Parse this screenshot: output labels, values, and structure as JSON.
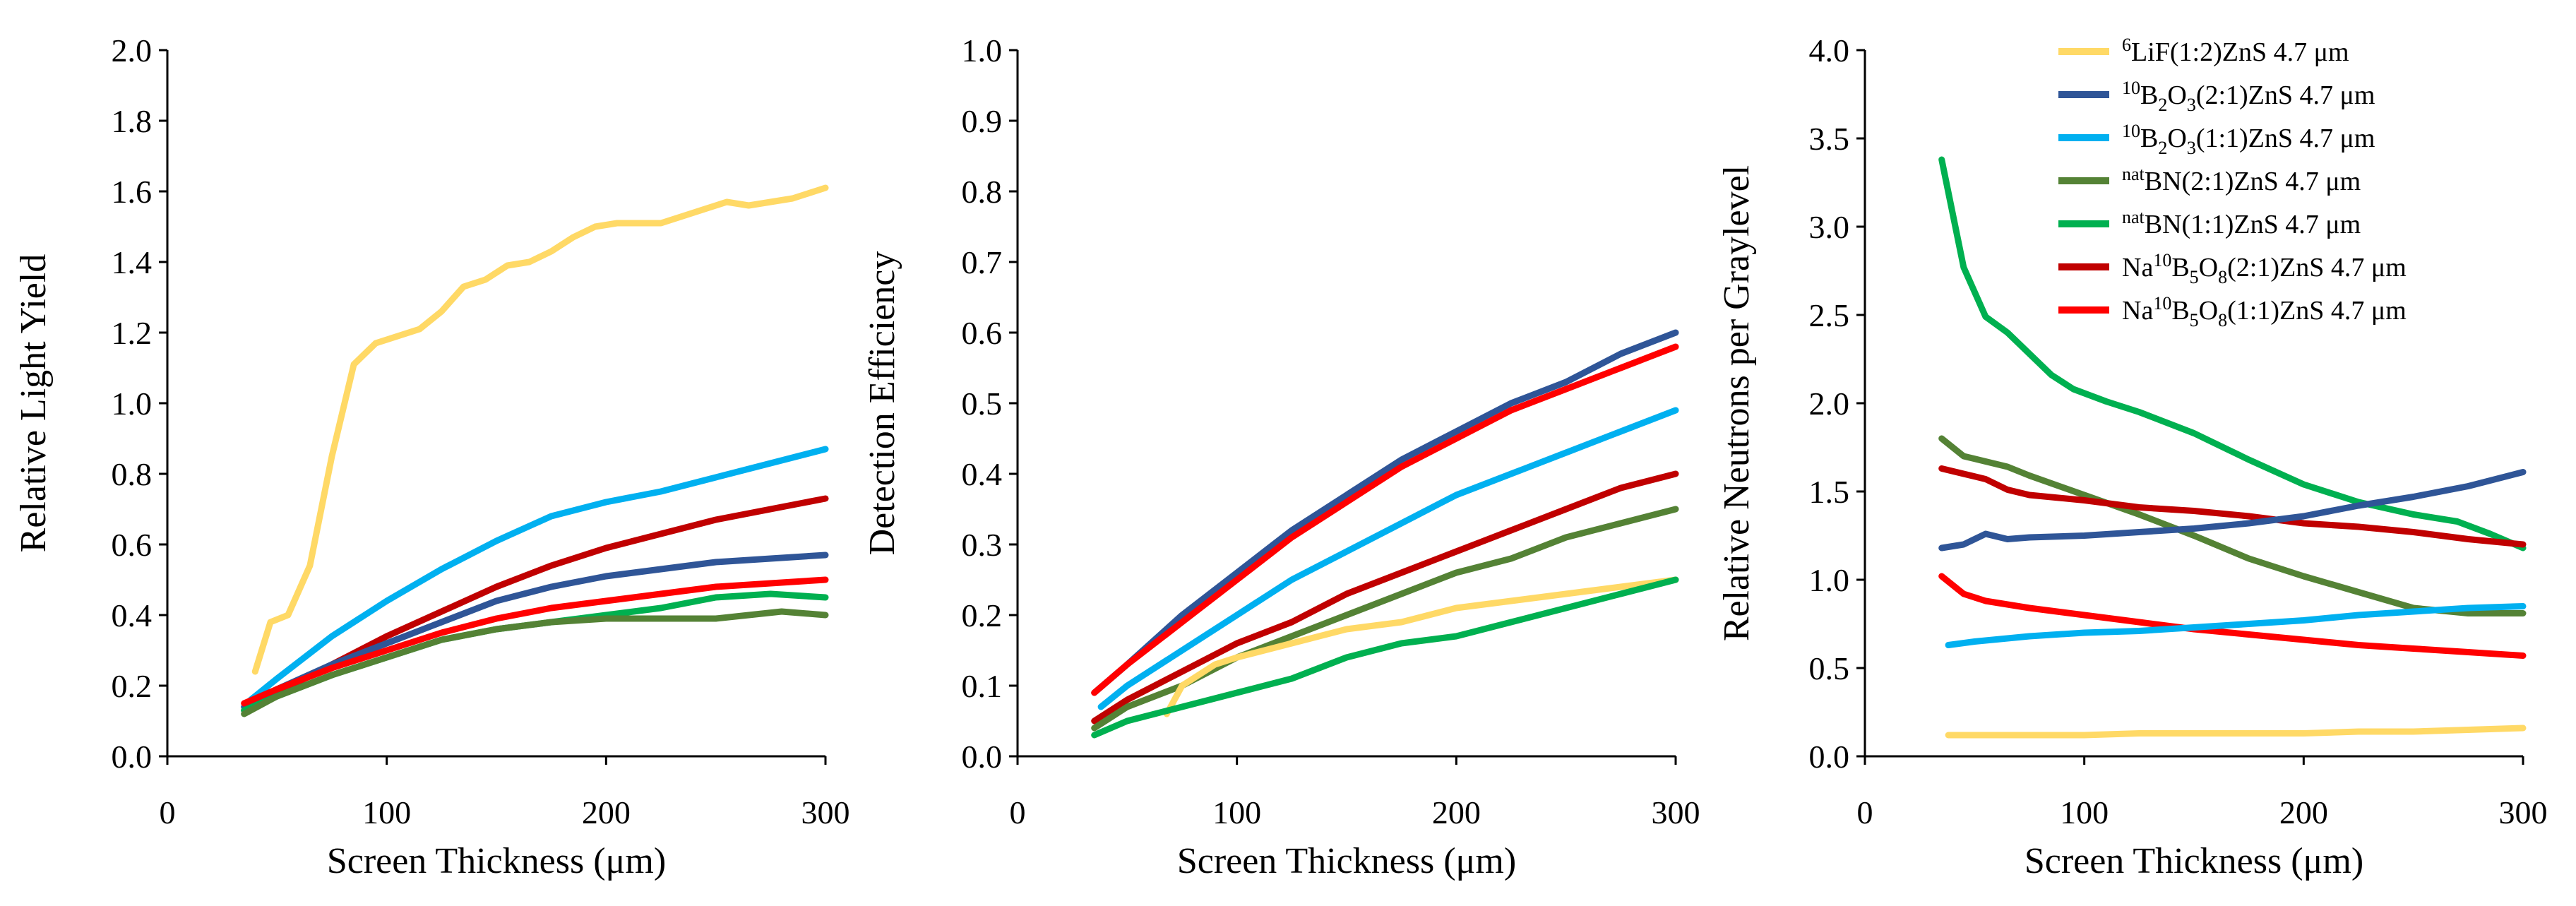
{
  "colors": {
    "LiF_1_2": "#FFD966",
    "B2O3_2_1": "#2F5597",
    "B2O3_1_1": "#00B0F0",
    "BN_2_1": "#548235",
    "BN_1_1": "#00B050",
    "Na_2_1": "#C00000",
    "Na_1_1": "#FF0000"
  },
  "legend": [
    {
      "key": "LiF_1_2",
      "sup": "6",
      "parts": [
        [
          "LiF(1:2)ZnS 4.7 μm",
          "n"
        ]
      ]
    },
    {
      "key": "B2O3_2_1",
      "sup": "10",
      "parts": [
        [
          "B",
          "n"
        ],
        [
          "2",
          "sub"
        ],
        [
          "O",
          "n"
        ],
        [
          "3",
          "sub"
        ],
        [
          "(2:1)ZnS 4.7 μm",
          "n"
        ]
      ]
    },
    {
      "key": "B2O3_1_1",
      "sup": "10",
      "parts": [
        [
          "B",
          "n"
        ],
        [
          "2",
          "sub"
        ],
        [
          "O",
          "n"
        ],
        [
          "3",
          "sub"
        ],
        [
          "(1:1)ZnS 4.7 μm",
          "n"
        ]
      ]
    },
    {
      "key": "BN_2_1",
      "sup": "nat",
      "parts": [
        [
          "BN(2:1)ZnS 4.7 μm",
          "n"
        ]
      ]
    },
    {
      "key": "BN_1_1",
      "sup": "nat",
      "parts": [
        [
          "BN(1:1)ZnS 4.7 μm",
          "n"
        ]
      ]
    },
    {
      "key": "Na_2_1",
      "sup": "",
      "parts": [
        [
          "Na",
          "n"
        ],
        [
          "10",
          "sup"
        ],
        [
          "B",
          "n"
        ],
        [
          "5",
          "sub"
        ],
        [
          "O",
          "n"
        ],
        [
          "8",
          "sub"
        ],
        [
          "(2:1)ZnS 4.7 μm",
          "n"
        ]
      ]
    },
    {
      "key": "Na_1_1",
      "sup": "",
      "parts": [
        [
          "Na",
          "n"
        ],
        [
          "10",
          "sup"
        ],
        [
          "B",
          "n"
        ],
        [
          "5",
          "sub"
        ],
        [
          "O",
          "n"
        ],
        [
          "8",
          "sub"
        ],
        [
          "(1:1)ZnS 4.7 μm",
          "n"
        ]
      ]
    }
  ],
  "chart_data": [
    {
      "type": "line",
      "xlabel": "Screen Thickness (μm)",
      "ylabel": "Relative Light Yield",
      "xlim": [
        0,
        300
      ],
      "ylim": [
        0,
        2.0
      ],
      "xticks": [
        0,
        100,
        200,
        300
      ],
      "yticks": [
        0.0,
        0.2,
        0.4,
        0.6,
        0.8,
        1.0,
        1.2,
        1.4,
        1.6,
        1.8,
        2.0
      ],
      "tick_decimals": 1,
      "series": [
        {
          "key": "LiF_1_2",
          "x": [
            40,
            47,
            55,
            65,
            75,
            85,
            95,
            105,
            115,
            125,
            135,
            145,
            155,
            165,
            175,
            185,
            195,
            205,
            215,
            225,
            235,
            245,
            255,
            265,
            275,
            285,
            295,
            300
          ],
          "y": [
            0.24,
            0.38,
            0.4,
            0.54,
            0.85,
            1.11,
            1.17,
            1.19,
            1.21,
            1.26,
            1.33,
            1.35,
            1.39,
            1.4,
            1.43,
            1.47,
            1.5,
            1.51,
            1.51,
            1.51,
            1.53,
            1.55,
            1.57,
            1.56,
            1.57,
            1.58,
            1.6,
            1.61
          ]
        },
        {
          "key": "B2O3_1_1",
          "x": [
            38,
            50,
            75,
            100,
            125,
            150,
            175,
            200,
            225,
            250,
            275,
            300
          ],
          "y": [
            0.16,
            0.22,
            0.34,
            0.44,
            0.53,
            0.61,
            0.68,
            0.72,
            0.75,
            0.79,
            0.83,
            0.87
          ]
        },
        {
          "key": "Na_2_1",
          "x": [
            35,
            50,
            75,
            100,
            125,
            150,
            175,
            200,
            225,
            250,
            275,
            300
          ],
          "y": [
            0.13,
            0.18,
            0.26,
            0.34,
            0.41,
            0.48,
            0.54,
            0.59,
            0.63,
            0.67,
            0.7,
            0.73
          ]
        },
        {
          "key": "B2O3_2_1",
          "x": [
            35,
            50,
            75,
            100,
            125,
            150,
            175,
            200,
            225,
            250,
            275,
            300
          ],
          "y": [
            0.14,
            0.19,
            0.26,
            0.32,
            0.38,
            0.44,
            0.48,
            0.51,
            0.53,
            0.55,
            0.56,
            0.57
          ]
        },
        {
          "key": "Na_1_1",
          "x": [
            35,
            50,
            75,
            100,
            125,
            150,
            175,
            200,
            225,
            250,
            275,
            300
          ],
          "y": [
            0.15,
            0.19,
            0.25,
            0.3,
            0.35,
            0.39,
            0.42,
            0.44,
            0.46,
            0.48,
            0.49,
            0.5
          ]
        },
        {
          "key": "BN_1_1",
          "x": [
            35,
            50,
            75,
            100,
            125,
            150,
            175,
            200,
            225,
            250,
            275,
            300
          ],
          "y": [
            0.13,
            0.17,
            0.23,
            0.28,
            0.33,
            0.36,
            0.38,
            0.4,
            0.42,
            0.45,
            0.46,
            0.45
          ]
        },
        {
          "key": "BN_2_1",
          "x": [
            35,
            50,
            75,
            100,
            125,
            150,
            175,
            200,
            225,
            250,
            265,
            280,
            300
          ],
          "y": [
            0.12,
            0.17,
            0.23,
            0.28,
            0.33,
            0.36,
            0.38,
            0.39,
            0.39,
            0.39,
            0.4,
            0.41,
            0.4
          ]
        }
      ]
    },
    {
      "type": "line",
      "xlabel": "Screen Thickness (μm)",
      "ylabel": "Detection Efficiency",
      "xlim": [
        0,
        300
      ],
      "ylim": [
        0,
        1.0
      ],
      "xticks": [
        0,
        100,
        200,
        300
      ],
      "yticks": [
        0.0,
        0.1,
        0.2,
        0.3,
        0.4,
        0.5,
        0.6,
        0.7,
        0.8,
        0.9,
        1.0
      ],
      "tick_decimals": 1,
      "series": [
        {
          "key": "B2O3_2_1",
          "x": [
            35,
            50,
            75,
            100,
            125,
            150,
            175,
            200,
            225,
            250,
            275,
            300
          ],
          "y": [
            0.09,
            0.13,
            0.2,
            0.26,
            0.32,
            0.37,
            0.42,
            0.46,
            0.5,
            0.53,
            0.57,
            0.6
          ]
        },
        {
          "key": "Na_1_1",
          "x": [
            35,
            50,
            75,
            100,
            125,
            150,
            175,
            200,
            225,
            250,
            275,
            300
          ],
          "y": [
            0.09,
            0.13,
            0.19,
            0.25,
            0.31,
            0.36,
            0.41,
            0.45,
            0.49,
            0.52,
            0.55,
            0.58
          ]
        },
        {
          "key": "B2O3_1_1",
          "x": [
            38,
            50,
            75,
            100,
            125,
            150,
            175,
            200,
            225,
            250,
            275,
            300
          ],
          "y": [
            0.07,
            0.1,
            0.15,
            0.2,
            0.25,
            0.29,
            0.33,
            0.37,
            0.4,
            0.43,
            0.46,
            0.49
          ]
        },
        {
          "key": "Na_2_1",
          "x": [
            35,
            50,
            75,
            100,
            125,
            150,
            175,
            200,
            225,
            250,
            275,
            300
          ],
          "y": [
            0.05,
            0.08,
            0.12,
            0.16,
            0.19,
            0.23,
            0.26,
            0.29,
            0.32,
            0.35,
            0.38,
            0.4
          ]
        },
        {
          "key": "BN_2_1",
          "x": [
            35,
            50,
            75,
            100,
            125,
            150,
            175,
            200,
            225,
            250,
            275,
            300
          ],
          "y": [
            0.04,
            0.07,
            0.1,
            0.14,
            0.17,
            0.2,
            0.23,
            0.26,
            0.28,
            0.31,
            0.33,
            0.35
          ]
        },
        {
          "key": "LiF_1_2",
          "x": [
            68,
            75,
            90,
            100,
            125,
            150,
            175,
            200,
            225,
            250,
            275,
            300
          ],
          "y": [
            0.06,
            0.1,
            0.13,
            0.14,
            0.16,
            0.18,
            0.19,
            0.21,
            0.22,
            0.23,
            0.24,
            0.25
          ]
        },
        {
          "key": "BN_1_1",
          "x": [
            35,
            50,
            75,
            100,
            125,
            150,
            175,
            200,
            225,
            250,
            275,
            300
          ],
          "y": [
            0.03,
            0.05,
            0.07,
            0.09,
            0.11,
            0.14,
            0.16,
            0.17,
            0.19,
            0.21,
            0.23,
            0.25
          ]
        }
      ]
    },
    {
      "type": "line",
      "xlabel": "Screen Thickness (μm)",
      "ylabel": "Relative Neutrons per Graylevel",
      "xlim": [
        0,
        300
      ],
      "ylim": [
        0,
        4.0
      ],
      "xticks": [
        0,
        100,
        200,
        300
      ],
      "yticks": [
        0.0,
        0.5,
        1.0,
        1.5,
        2.0,
        2.5,
        3.0,
        3.5,
        4.0
      ],
      "tick_decimals": 1,
      "series": [
        {
          "key": "BN_1_1",
          "x": [
            35,
            45,
            55,
            65,
            75,
            85,
            95,
            110,
            125,
            150,
            175,
            200,
            225,
            250,
            270,
            285,
            300
          ],
          "y": [
            3.38,
            2.77,
            2.49,
            2.4,
            2.28,
            2.16,
            2.08,
            2.01,
            1.95,
            1.83,
            1.68,
            1.54,
            1.44,
            1.37,
            1.33,
            1.26,
            1.18
          ]
        },
        {
          "key": "BN_2_1",
          "x": [
            35,
            45,
            55,
            65,
            75,
            100,
            125,
            150,
            175,
            200,
            225,
            250,
            275,
            300
          ],
          "y": [
            1.8,
            1.7,
            1.67,
            1.64,
            1.59,
            1.48,
            1.37,
            1.25,
            1.12,
            1.02,
            0.93,
            0.84,
            0.81,
            0.81
          ]
        },
        {
          "key": "Na_2_1",
          "x": [
            35,
            45,
            55,
            65,
            75,
            100,
            125,
            150,
            175,
            200,
            225,
            250,
            275,
            300
          ],
          "y": [
            1.63,
            1.6,
            1.57,
            1.51,
            1.48,
            1.45,
            1.41,
            1.39,
            1.36,
            1.32,
            1.3,
            1.27,
            1.23,
            1.2
          ]
        },
        {
          "key": "B2O3_2_1",
          "x": [
            35,
            45,
            55,
            65,
            75,
            100,
            125,
            150,
            175,
            200,
            225,
            250,
            275,
            300
          ],
          "y": [
            1.18,
            1.2,
            1.26,
            1.23,
            1.24,
            1.25,
            1.27,
            1.29,
            1.32,
            1.36,
            1.42,
            1.47,
            1.53,
            1.61
          ]
        },
        {
          "key": "Na_1_1",
          "x": [
            35,
            45,
            55,
            65,
            75,
            100,
            125,
            150,
            175,
            200,
            225,
            250,
            275,
            300
          ],
          "y": [
            1.02,
            0.92,
            0.88,
            0.86,
            0.84,
            0.8,
            0.76,
            0.72,
            0.69,
            0.66,
            0.63,
            0.61,
            0.59,
            0.57
          ]
        },
        {
          "key": "B2O3_1_1",
          "x": [
            38,
            50,
            75,
            100,
            125,
            150,
            175,
            200,
            225,
            250,
            275,
            300
          ],
          "y": [
            0.63,
            0.65,
            0.68,
            0.7,
            0.71,
            0.73,
            0.75,
            0.77,
            0.8,
            0.82,
            0.84,
            0.85
          ]
        },
        {
          "key": "LiF_1_2",
          "x": [
            38,
            50,
            75,
            100,
            125,
            150,
            175,
            200,
            225,
            250,
            275,
            300
          ],
          "y": [
            0.12,
            0.12,
            0.12,
            0.12,
            0.13,
            0.13,
            0.13,
            0.13,
            0.14,
            0.14,
            0.15,
            0.16
          ]
        }
      ]
    }
  ]
}
